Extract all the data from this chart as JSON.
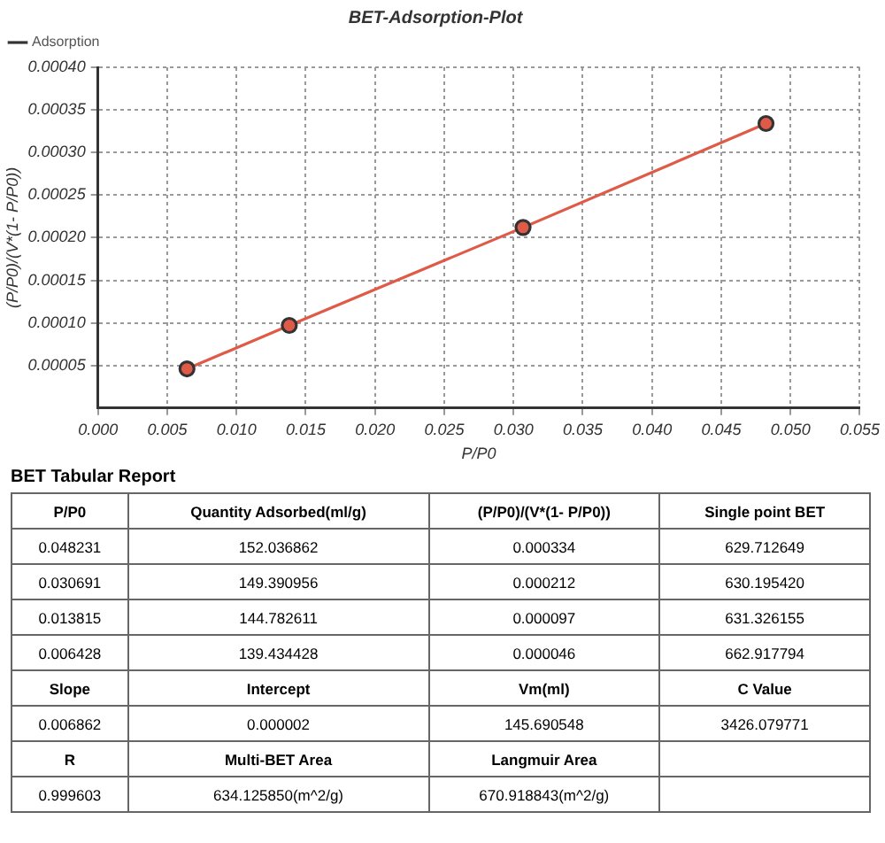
{
  "chart_data": [
    {
      "type": "line",
      "title": "BET-Adsorption-Plot",
      "xlabel": "P/P0",
      "ylabel": "(P/P0)/(V*(1- P/P0))",
      "x": [
        0.048231,
        0.030691,
        0.013815,
        0.006428
      ],
      "series": [
        {
          "name": "Adsorption",
          "color": "#e05a48",
          "values": [
            0.000334,
            0.000212,
            9.7e-05,
            4.6e-05
          ]
        }
      ],
      "xlim": [
        0,
        0.055
      ],
      "xticks": [
        {
          "value": 0,
          "label": "0.000"
        },
        {
          "value": 0.005,
          "label": "0.005"
        },
        {
          "value": 0.01,
          "label": "0.010"
        },
        {
          "value": 0.015,
          "label": "0.015"
        },
        {
          "value": 0.02,
          "label": "0.020"
        },
        {
          "value": 0.025,
          "label": "0.025"
        },
        {
          "value": 0.03,
          "label": "0.030"
        },
        {
          "value": 0.035,
          "label": "0.035"
        },
        {
          "value": 0.04,
          "label": "0.040"
        },
        {
          "value": 0.045,
          "label": "0.045"
        },
        {
          "value": 0.05,
          "label": "0.050"
        },
        {
          "value": 0.055,
          "label": "0.055"
        }
      ],
      "ylim": [
        0,
        0.0004
      ],
      "yticks": [
        {
          "value": 5e-05,
          "label": "0.00005"
        },
        {
          "value": 0.0001,
          "label": "0.00010"
        },
        {
          "value": 0.00015,
          "label": "0.00015"
        },
        {
          "value": 0.0002,
          "label": "0.00020"
        },
        {
          "value": 0.00025,
          "label": "0.00025"
        },
        {
          "value": 0.0003,
          "label": "0.00030"
        },
        {
          "value": 0.00035,
          "label": "0.00035"
        },
        {
          "value": 0.0004,
          "label": "0.00040"
        }
      ],
      "grid": true,
      "legend": "top left",
      "marker": "circle",
      "line_style": "solid"
    },
    {
      "type": "other",
      "title": "BET Tabular Report",
      "categories": [
        "P/P0",
        "Quantity Adsorbed(ml/g)",
        "(P/P0)/(V*(1- P/P0))",
        "Single point BET"
      ],
      "annotations": [
        "0.048231",
        "152.036862",
        "0.000334",
        "629.712649",
        "0.030691",
        "149.390956",
        "0.000212",
        "630.195420",
        "0.013815",
        "144.782611",
        "0.000097",
        "631.326155",
        "0.006428",
        "139.434428",
        "0.000046",
        "662.917794",
        "Slope",
        "Intercept",
        "Vm(ml)",
        "C Value",
        "0.006862",
        "0.000002",
        "145.690548",
        "3426.079771",
        "R",
        "Multi-BET Area",
        "Langmuir Area",
        null,
        "0.999603",
        "634.125850(m^2/g)",
        "670.918843(m^2/g)",
        null
      ]
    }
  ]
}
